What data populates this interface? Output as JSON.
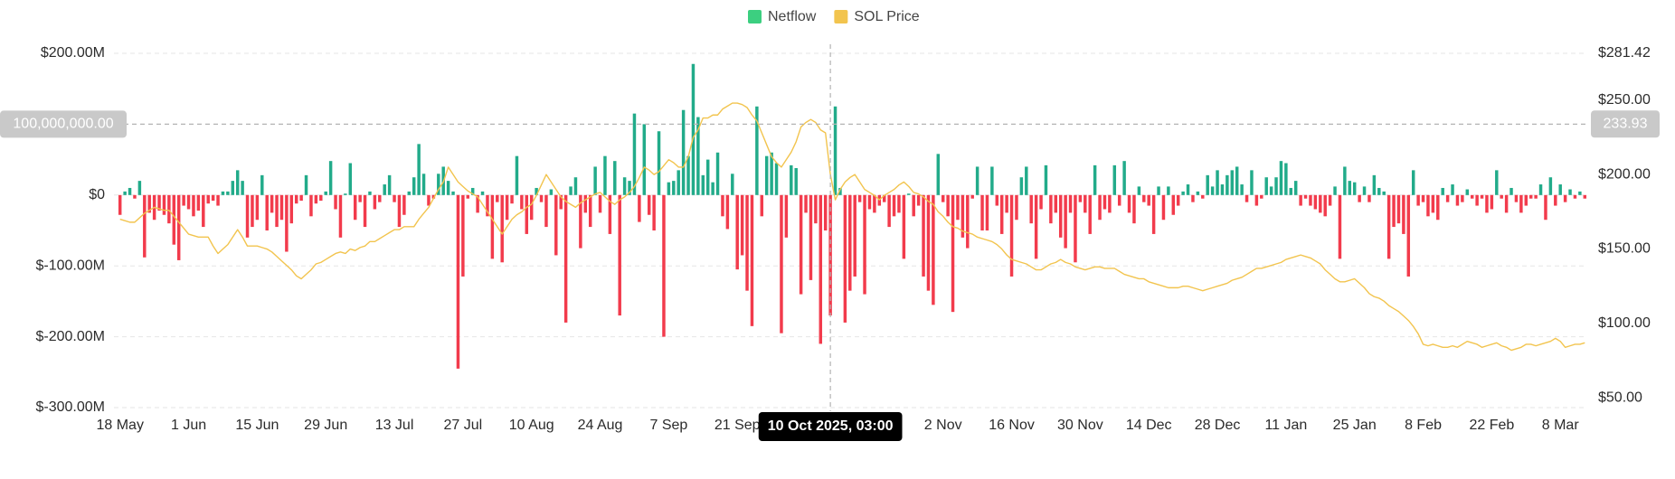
{
  "chart_data": {
    "type": "bar-line",
    "legend": "top",
    "grid": true,
    "categories": [
      "18 May",
      null,
      null,
      null,
      null,
      null,
      null,
      null,
      null,
      null,
      null,
      null,
      null,
      null,
      "1 Jun",
      null,
      null,
      null,
      null,
      null,
      null,
      null,
      null,
      null,
      null,
      null,
      null,
      null,
      "15 Jun",
      null,
      null,
      null,
      null,
      null,
      null,
      null,
      null,
      null,
      null,
      null,
      null,
      null,
      "29 Jun",
      null,
      null,
      null,
      null,
      null,
      null,
      null,
      null,
      null,
      null,
      null,
      null,
      null,
      "13 Jul",
      null,
      null,
      null,
      null,
      null,
      null,
      null,
      null,
      null,
      null,
      null,
      null,
      null,
      "27 Jul",
      null,
      null,
      null,
      null,
      null,
      null,
      null,
      null,
      null,
      null,
      null,
      null,
      null,
      "10 Aug",
      null,
      null,
      null,
      null,
      null,
      null,
      null,
      null,
      null,
      null,
      null,
      null,
      null,
      "24 Aug",
      null,
      null,
      null,
      null,
      null,
      null,
      null,
      null,
      null,
      null,
      null,
      null,
      null,
      "7 Sep",
      null,
      null,
      null,
      null,
      null,
      null,
      null,
      null,
      null,
      null,
      null,
      null,
      null,
      "21 Sep",
      null,
      null,
      null,
      null,
      null,
      null,
      null,
      null,
      null,
      null,
      null,
      null,
      null,
      null,
      null,
      null,
      null,
      null,
      null,
      null,
      null,
      null,
      null,
      null,
      null,
      null,
      null,
      null,
      null,
      null,
      null,
      null,
      null,
      null,
      null,
      null,
      null,
      null,
      null,
      null,
      null,
      "2 Nov",
      null,
      null,
      null,
      null,
      null,
      null,
      null,
      null,
      null,
      null,
      null,
      null,
      null,
      "16 Nov",
      null,
      null,
      null,
      null,
      null,
      null,
      null,
      null,
      null,
      null,
      null,
      null,
      null,
      "30 Nov",
      null,
      null,
      null,
      null,
      null,
      null,
      null,
      null,
      null,
      null,
      null,
      null,
      null,
      "14 Dec",
      null,
      null,
      null,
      null,
      null,
      null,
      null,
      null,
      null,
      null,
      null,
      null,
      null,
      "28 Dec",
      null,
      null,
      null,
      null,
      null,
      null,
      null,
      null,
      null,
      null,
      null,
      null,
      null,
      "11 Jan",
      null,
      null,
      null,
      null,
      null,
      null,
      null,
      null,
      null,
      null,
      null,
      null,
      null,
      "25 Jan",
      null,
      null,
      null,
      null,
      null,
      null,
      null,
      null,
      null,
      null,
      null,
      null,
      null,
      "8 Feb",
      null,
      null,
      null,
      null,
      null,
      null,
      null,
      null,
      null,
      null,
      null,
      null,
      null,
      "22 Feb",
      null,
      null,
      null,
      null,
      null,
      null,
      null,
      null,
      null,
      null,
      null,
      null,
      null,
      "8 Mar",
      null,
      null,
      null,
      null,
      null
    ],
    "series": [
      {
        "name": "Netflow",
        "color": "#22ab8a",
        "negative_color": "#f23b4c",
        "legend_color": "#3ccf80",
        "values": [
          -28,
          5,
          10,
          -5,
          20,
          -88,
          -25,
          -35,
          -22,
          -28,
          -40,
          -70,
          -92,
          -15,
          -20,
          -30,
          -22,
          -45,
          -12,
          -8,
          -15,
          5,
          5,
          20,
          35,
          20,
          -60,
          -45,
          -35,
          28,
          -50,
          -25,
          -45,
          -35,
          -80,
          -40,
          -12,
          -8,
          28,
          -30,
          -12,
          -8,
          5,
          48,
          -20,
          -60,
          2,
          45,
          -35,
          -10,
          -45,
          5,
          -20,
          -10,
          15,
          28,
          -10,
          -45,
          -28,
          5,
          25,
          72,
          30,
          -15,
          -5,
          30,
          40,
          20,
          5,
          -245,
          -115,
          -5,
          10,
          -25,
          5,
          -30,
          -90,
          -10,
          -95,
          -35,
          -12,
          55,
          -20,
          -55,
          -35,
          10,
          -10,
          -45,
          8,
          -85,
          -20,
          -180,
          12,
          25,
          -75,
          -25,
          -45,
          40,
          -25,
          55,
          -55,
          48,
          -170,
          25,
          20,
          115,
          -38,
          100,
          -28,
          -50,
          90,
          -200,
          18,
          20,
          35,
          120,
          55,
          185,
          110,
          28,
          50,
          18,
          60,
          -30,
          -48,
          30,
          -105,
          -85,
          -135,
          -185,
          125,
          -30,
          55,
          60,
          45,
          -195,
          -60,
          42,
          38,
          -140,
          -25,
          -120,
          -40,
          -210,
          -50,
          -170,
          125,
          10,
          -180,
          -135,
          -115,
          -10,
          -140,
          -20,
          -25,
          -15,
          -10,
          -45,
          -30,
          -25,
          -90,
          2,
          -30,
          -15,
          -115,
          -135,
          -155,
          58,
          -10,
          -30,
          -165,
          -35,
          -60,
          -75,
          -5,
          40,
          -50,
          -50,
          40,
          -15,
          -55,
          -25,
          -115,
          -35,
          25,
          40,
          -40,
          -90,
          -20,
          42,
          -40,
          -25,
          -60,
          -75,
          -25,
          -95,
          -10,
          -25,
          -55,
          42,
          -35,
          -20,
          -25,
          42,
          -15,
          48,
          -25,
          -40,
          12,
          -10,
          -15,
          -55,
          12,
          -35,
          12,
          -28,
          -15,
          5,
          15,
          -10,
          5,
          -5,
          28,
          12,
          35,
          15,
          28,
          35,
          40,
          15,
          -10,
          35,
          -15,
          -5,
          25,
          12,
          25,
          48,
          45,
          10,
          20,
          -15,
          -5,
          -15,
          -20,
          -25,
          -30,
          -15,
          12,
          -90,
          40,
          20,
          18,
          -10,
          12,
          -10,
          28,
          10,
          5,
          -90,
          -45,
          -40,
          -55,
          -115,
          35,
          -15,
          -10,
          -30,
          -25,
          -35,
          10,
          -10,
          15,
          -15,
          -10,
          8,
          -5,
          -15,
          -5,
          -25,
          -20,
          35,
          -5,
          -25,
          10,
          -10,
          -25,
          -15,
          -5,
          -5,
          15,
          -35,
          25,
          -15,
          15,
          -10,
          8,
          -5,
          5,
          -5
        ]
      },
      {
        "name": "SOL Price",
        "color": "#f2c44e",
        "axis": "y2",
        "values": [
          170,
          169,
          168,
          168,
          171,
          174,
          176,
          178,
          177,
          176,
          176,
          172,
          168,
          164,
          160,
          159,
          158,
          158,
          158,
          152,
          147,
          150,
          153,
          158,
          163,
          158,
          152,
          152,
          152,
          151,
          150,
          148,
          145,
          142,
          139,
          136,
          132,
          130,
          133,
          136,
          140,
          141,
          143,
          145,
          147,
          148,
          147,
          150,
          149,
          151,
          152,
          155,
          155,
          157,
          159,
          161,
          163,
          163,
          165,
          165,
          165,
          170,
          174,
          178,
          184,
          190,
          195,
          205,
          200,
          195,
          192,
          189,
          187,
          185,
          180,
          175,
          170,
          165,
          160,
          165,
          170,
          173,
          175,
          178,
          180,
          186,
          193,
          200,
          195,
          190,
          185,
          182,
          180,
          178,
          181,
          183,
          185,
          187,
          188,
          185,
          182,
          180,
          183,
          185,
          188,
          192,
          198,
          205,
          203,
          200,
          202,
          206,
          210,
          208,
          205,
          205,
          212,
          225,
          230,
          238,
          238,
          240,
          240,
          244,
          246,
          248,
          248,
          247,
          245,
          240,
          236,
          228,
          220,
          212,
          208,
          205,
          210,
          215,
          222,
          232,
          235,
          237,
          235,
          230,
          228,
          200,
          183,
          190,
          195,
          198,
          200,
          195,
          190,
          188,
          186,
          183,
          186,
          188,
          190,
          193,
          195,
          192,
          188,
          187,
          185,
          182,
          180,
          175,
          172,
          168,
          165,
          164,
          162,
          161,
          160,
          158,
          157,
          156,
          155,
          153,
          150,
          146,
          143,
          142,
          141,
          140,
          138,
          136,
          136,
          138,
          140,
          141,
          143,
          141,
          140,
          138,
          137,
          136,
          137,
          138,
          138,
          137,
          137,
          137,
          135,
          133,
          132,
          131,
          130,
          130,
          128,
          127,
          126,
          125,
          124,
          124,
          124,
          125,
          125,
          124,
          123,
          122,
          123,
          124,
          125,
          126,
          127,
          129,
          130,
          131,
          133,
          135,
          137,
          137,
          138,
          139,
          140,
          141,
          143,
          144,
          145,
          146,
          145,
          144,
          142,
          140,
          136,
          133,
          130,
          128,
          128,
          129,
          130,
          127,
          124,
          120,
          118,
          117,
          115,
          112,
          110,
          108,
          105,
          102,
          98,
          93,
          86,
          85,
          86,
          85,
          84,
          84,
          85,
          84,
          86,
          88,
          87,
          86,
          84,
          85,
          86,
          87,
          85,
          84,
          82,
          83,
          84,
          86,
          86,
          85,
          86,
          87,
          88,
          90,
          88,
          84,
          85,
          86,
          86,
          87
        ]
      }
    ],
    "ylim": [
      -300,
      200
    ],
    "yticks": [
      {
        "value": 200,
        "label": "$200.00M"
      },
      {
        "value": 0,
        "label": "$0"
      },
      {
        "value": -100,
        "label": "$-100.00M"
      },
      {
        "value": -200,
        "label": "$-200.00M"
      },
      {
        "value": -300,
        "label": "$-300.00M"
      }
    ],
    "y2lim": [
      43.5,
      281.42
    ],
    "y2ticks": [
      {
        "value": 281.42,
        "label": "$281.42"
      },
      {
        "value": 250,
        "label": "$250.00"
      },
      {
        "value": 200,
        "label": "$200.00"
      },
      {
        "value": 150,
        "label": "$150.00"
      },
      {
        "value": 100,
        "label": "$100.00"
      },
      {
        "value": 50,
        "label": "$50.00"
      }
    ],
    "crosshair": {
      "x_label": "10 Oct 2025, 03:00",
      "y": {
        "value": 100,
        "label": "100,000,000.00"
      },
      "y2": 233.93
    }
  }
}
